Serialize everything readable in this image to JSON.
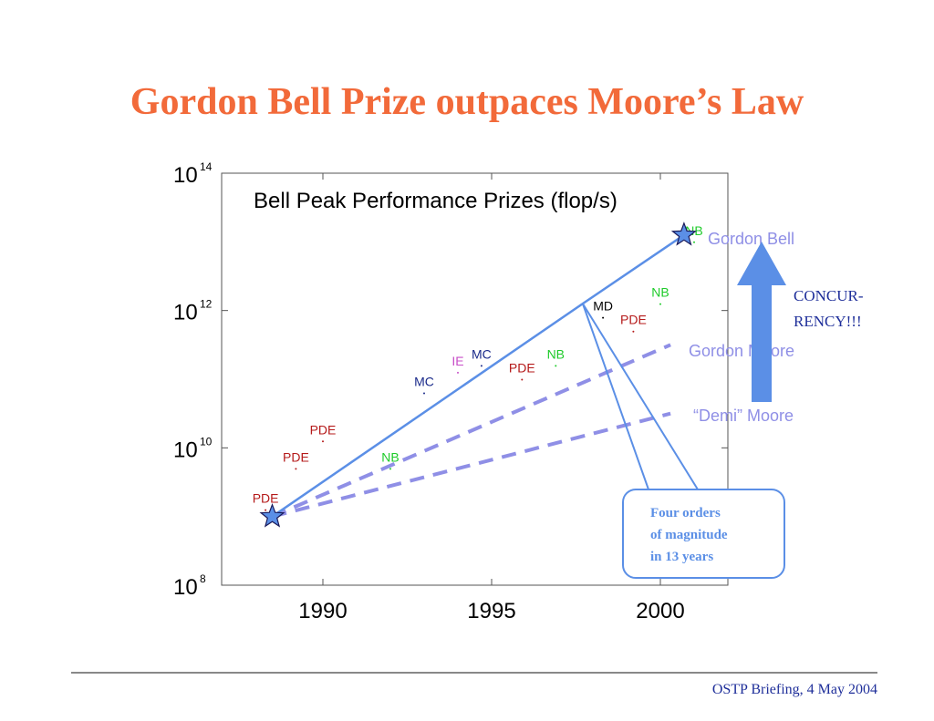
{
  "slide": {
    "title": "Gordon Bell Prize outpaces Moore’s Law",
    "footer": "OSTP Briefing, 4 May 2004"
  },
  "colors": {
    "title": "#f26a3a",
    "trend": "#5b8fe6",
    "moore": "#8f8fe6",
    "arrow": "#5b8fe6",
    "PDE": "#b51a1a",
    "NB": "#1ecb2a",
    "MC": "#1a2a8a",
    "IE": "#c84fc8",
    "MD": "#000000"
  },
  "chart_data": {
    "type": "scatter",
    "title": "Bell Peak Performance Prizes (flop/s)",
    "xlabel": "",
    "ylabel": "",
    "xlim": [
      1987,
      2002
    ],
    "ylim": [
      8,
      14
    ],
    "y_scale": "log10",
    "x_ticks": [
      {
        "value": 1990,
        "label": "1990"
      },
      {
        "value": 1995,
        "label": "1995"
      },
      {
        "value": 2000,
        "label": "2000"
      }
    ],
    "y_ticks": [
      {
        "value": 8,
        "base": "10",
        "exp": "8"
      },
      {
        "value": 10,
        "base": "10",
        "exp": "10"
      },
      {
        "value": 12,
        "base": "10",
        "exp": "12"
      },
      {
        "value": 14,
        "base": "10",
        "exp": "14"
      }
    ],
    "points": [
      {
        "label": "PDE",
        "x": 1988.3,
        "y": 9.2
      },
      {
        "label": "PDE",
        "x": 1989.2,
        "y": 9.8
      },
      {
        "label": "PDE",
        "x": 1990.0,
        "y": 10.2
      },
      {
        "label": "NB",
        "x": 1992.0,
        "y": 9.8
      },
      {
        "label": "MC",
        "x": 1993.0,
        "y": 10.9
      },
      {
        "label": "IE",
        "x": 1994.0,
        "y": 11.2
      },
      {
        "label": "MC",
        "x": 1994.7,
        "y": 11.3
      },
      {
        "label": "PDE",
        "x": 1995.9,
        "y": 11.1
      },
      {
        "label": "NB",
        "x": 1996.9,
        "y": 11.3
      },
      {
        "label": "MD",
        "x": 1998.3,
        "y": 12.0
      },
      {
        "label": "PDE",
        "x": 1999.2,
        "y": 11.8
      },
      {
        "label": "NB",
        "x": 2000.0,
        "y": 12.2
      },
      {
        "label": "NB",
        "x": 2001.0,
        "y": 13.1
      }
    ],
    "gordon_bell_line": [
      {
        "x": 1988.5,
        "y": 9.0
      },
      {
        "x": 1997.7,
        "y": 12.1
      },
      {
        "x": 2000.7,
        "y": 13.1
      }
    ],
    "stars": [
      {
        "x": 1988.5,
        "y": 9.0
      },
      {
        "x": 2000.7,
        "y": 13.1
      }
    ],
    "moore_lines": [
      {
        "label": "Gordon Moore",
        "from": {
          "x": 1988.5,
          "y": 9.0
        },
        "to": {
          "x": 2000.3,
          "y": 11.5
        }
      },
      {
        "label": "“Demi” Moore",
        "from": {
          "x": 1988.5,
          "y": 9.0
        },
        "to": {
          "x": 2000.3,
          "y": 10.5
        }
      }
    ],
    "series_labels": {
      "gordon_bell": "Gordon Bell",
      "gordon_moore": "Gordon Moore",
      "demi_moore": "“Demi” Moore"
    },
    "annotations": {
      "concurrency": [
        "CONCUR-",
        "RENCY!!!"
      ],
      "callout": [
        "Four orders",
        "of magnitude",
        "in 13 years"
      ]
    },
    "grid": false
  }
}
